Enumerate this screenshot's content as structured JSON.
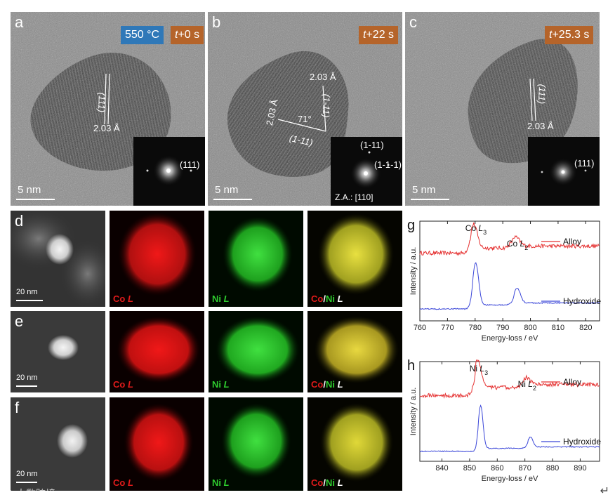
{
  "temperature_badge": "550 °C",
  "tem_panels": [
    {
      "label": "a",
      "time_prefix": "t",
      "time_suffix": "+0 s",
      "scale": "5 nm",
      "d_spacing": "2.03 Å",
      "plane": "(111)",
      "fft_spot": "(111)"
    },
    {
      "label": "b",
      "time_prefix": "t",
      "time_suffix": "+22 s",
      "scale": "5 nm",
      "d_spacing_1": "2.03 Å",
      "d_spacing_2": "2.03 Å",
      "plane_1": "(1-11)",
      "plane_2": "(1-1-1)",
      "angle": "71°",
      "fft_spot_1": "(1-11)",
      "fft_spot_2": "(1-1-1)",
      "zone_axis": "Z.A.: [110]"
    },
    {
      "label": "c",
      "time_prefix": "t",
      "time_suffix": "+25.3 s",
      "scale": "5 nm",
      "d_spacing": "2.03 Å",
      "plane": "(111)",
      "fft_spot": "(111)"
    }
  ],
  "eels_rows": [
    {
      "label": "d",
      "scale": "20 nm",
      "co_label_el": "Co ",
      "co_label_edge": "L",
      "ni_label_el": "Ni ",
      "ni_label_edge": "L",
      "overlay_co": "Co",
      "overlay_sep": "/",
      "overlay_ni": "Ni ",
      "overlay_edge": "L"
    },
    {
      "label": "e",
      "scale": "20 nm",
      "co_label_el": "Co ",
      "co_label_edge": "L",
      "ni_label_el": "Ni ",
      "ni_label_edge": "L",
      "overlay_co": "Co",
      "overlay_sep": "/",
      "overlay_ni": "Ni ",
      "overlay_edge": "L"
    },
    {
      "label": "f",
      "scale": "20 nm",
      "co_label_el": "Co ",
      "co_label_edge": "L",
      "ni_label_el": "Ni ",
      "ni_label_edge": "L",
      "overlay_co": "Co",
      "overlay_sep": "/",
      "overlay_ni": "Ni ",
      "overlay_edge": "L"
    }
  ],
  "colors": {
    "badge_temp": "#2f78b8",
    "badge_time": "#b5642a",
    "co_red": "#e11b1b",
    "ni_green": "#2ecc2e",
    "alloy_line": "#e53030",
    "hydroxide_line": "#3a46d8"
  },
  "watermark": "☺ 大数跨境",
  "return_glyph": "↵",
  "chart_data": [
    {
      "panel_label": "g",
      "type": "line",
      "xlabel": "Energy-loss / eV",
      "ylabel": "Intensity / a.u.",
      "xlim": [
        760,
        825
      ],
      "xticks": [
        760,
        770,
        780,
        790,
        800,
        810,
        820
      ],
      "series": [
        {
          "name": "Alloy",
          "baseline": 0.68,
          "peaks": [
            {
              "x": 779.5,
              "h": 0.24,
              "w": 1.8
            },
            {
              "x": 794.5,
              "h": 0.09,
              "w": 2.2
            }
          ],
          "step": [
            {
              "x": 778.5,
              "h": 0.05
            },
            {
              "x": 793.5,
              "h": 0.02
            }
          ],
          "noise": 0.02
        },
        {
          "name": "Hydroxide",
          "baseline": 0.12,
          "peaks": [
            {
              "x": 780.2,
              "h": 0.42,
              "w": 1.5
            },
            {
              "x": 795.2,
              "h": 0.15,
              "w": 1.6
            }
          ],
          "step": [
            {
              "x": 779,
              "h": 0.04
            },
            {
              "x": 794,
              "h": 0.02
            }
          ],
          "noise": 0.006
        }
      ],
      "annotations": [
        {
          "el": "Co ",
          "edge": "L",
          "sub": "3",
          "x": 779.5
        },
        {
          "el": "Co ",
          "edge": "L",
          "sub": "2",
          "x": 794.5
        }
      ]
    },
    {
      "panel_label": "h",
      "type": "line",
      "xlabel": "Energy-loss / eV",
      "ylabel": "Intensity / a.u.",
      "xlim": [
        832,
        897
      ],
      "xticks": [
        840,
        850,
        860,
        870,
        880,
        890
      ],
      "series": [
        {
          "name": "Alloy",
          "baseline": 0.66,
          "peaks": [
            {
              "x": 853,
              "h": 0.28,
              "w": 1.7
            },
            {
              "x": 870.5,
              "h": 0.07,
              "w": 2.0
            }
          ],
          "step": [
            {
              "x": 852,
              "h": 0.08
            },
            {
              "x": 869.5,
              "h": 0.03
            }
          ],
          "noise": 0.02
        },
        {
          "name": "Hydroxide",
          "baseline": 0.1,
          "peaks": [
            {
              "x": 854,
              "h": 0.43,
              "w": 1.2
            },
            {
              "x": 872,
              "h": 0.1,
              "w": 1.3
            }
          ],
          "step": [
            {
              "x": 853,
              "h": 0.03
            },
            {
              "x": 871,
              "h": 0.015
            }
          ],
          "noise": 0.005
        }
      ],
      "annotations": [
        {
          "el": "Ni ",
          "edge": "L",
          "sub": "3",
          "x": 853
        },
        {
          "el": "Ni ",
          "edge": "L",
          "sub": "2",
          "x": 870.5
        }
      ]
    }
  ]
}
